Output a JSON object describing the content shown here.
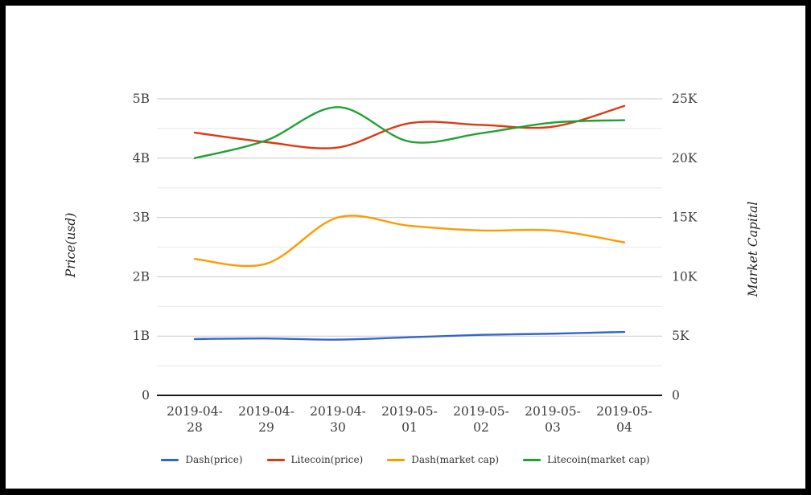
{
  "frame": {
    "background": "#ffffff",
    "border_color": "#000000"
  },
  "chart_data": {
    "type": "line",
    "title": "",
    "categories": [
      "2019-04-28",
      "2019-04-29",
      "2019-04-30",
      "2019-05-01",
      "2019-05-02",
      "2019-05-03",
      "2019-05-04"
    ],
    "axes": {
      "left": {
        "title": "Price(usd)",
        "ticks": [
          "0",
          "1B",
          "2B",
          "3B",
          "4B",
          "5B"
        ],
        "min": 0,
        "max": 5,
        "minor_step": 0.5
      },
      "right": {
        "title": "Market Capital",
        "ticks": [
          "0",
          "5K",
          "10K",
          "15K",
          "20K",
          "25K"
        ],
        "min": 0,
        "max": 25,
        "minor_step": 2.5
      }
    },
    "grid": {
      "major_color": "#c9c9c9",
      "minor_color": "#e8e8e8",
      "baseline_color": "#1a1a1a",
      "on": true
    },
    "legend": {
      "position": "bottom",
      "entries": [
        "Dash(price)",
        "Litecoin(price)",
        "Dash(market cap)",
        "Litecoin(market cap)"
      ]
    },
    "series": [
      {
        "name": "Dash(price)",
        "color": "#3366cc",
        "axis": "left",
        "unit": "B",
        "values": [
          0.95,
          0.96,
          0.94,
          0.98,
          1.02,
          1.04,
          1.07
        ]
      },
      {
        "name": "Litecoin(price)",
        "color": "#dc3912",
        "axis": "left",
        "unit": "B",
        "values": [
          4.43,
          4.27,
          4.18,
          4.59,
          4.56,
          4.53,
          4.88
        ]
      },
      {
        "name": "Dash(market cap)",
        "color": "#ff9900",
        "axis": "right",
        "unit": "K",
        "values": [
          11.5,
          11.1,
          15.0,
          14.3,
          13.9,
          13.9,
          12.9
        ]
      },
      {
        "name": "Litecoin(market cap)",
        "color": "#1fa233",
        "axis": "right",
        "unit": "K",
        "values": [
          20.0,
          21.5,
          24.3,
          21.4,
          22.1,
          23.0,
          23.2
        ]
      }
    ],
    "text_color": "#3e3e3e"
  }
}
